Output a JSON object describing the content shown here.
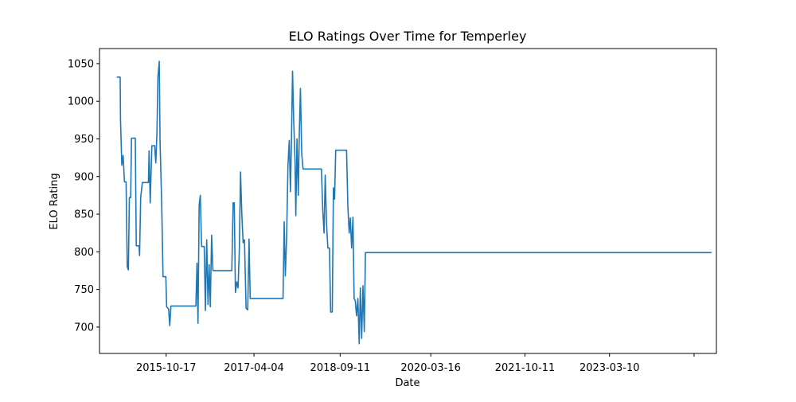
{
  "chart_data": {
    "type": "line",
    "title": "ELO Ratings Over Time for Temperley",
    "xlabel": "Date",
    "ylabel": "ELO Rating",
    "x_tick_labels": [
      "2015-10-17",
      "2017-04-04",
      "2018-09-11",
      "2020-03-16",
      "2021-10-11",
      "2023-03-10"
    ],
    "y_tick_labels": [
      "700",
      "750",
      "800",
      "850",
      "900",
      "950",
      "1000",
      "1050"
    ],
    "ylim": [
      665,
      1070
    ],
    "xlim": [
      "2014-09-06",
      "2024-12-20"
    ],
    "grid": false,
    "line_color": "#1f77b4",
    "series": [
      {
        "points": [
          [
            "2014-12-20",
            1032
          ],
          [
            "2015-01-10",
            1032
          ],
          [
            "2015-01-12",
            975
          ],
          [
            "2015-01-20",
            915
          ],
          [
            "2015-01-28",
            928
          ],
          [
            "2015-02-05",
            893
          ],
          [
            "2015-02-15",
            893
          ],
          [
            "2015-02-22",
            780
          ],
          [
            "2015-03-01",
            776
          ],
          [
            "2015-03-07",
            872
          ],
          [
            "2015-03-15",
            872
          ],
          [
            "2015-03-20",
            951
          ],
          [
            "2015-04-12",
            951
          ],
          [
            "2015-04-18",
            808
          ],
          [
            "2015-05-05",
            808
          ],
          [
            "2015-05-08",
            795
          ],
          [
            "2015-05-15",
            872
          ],
          [
            "2015-05-25",
            892
          ],
          [
            "2015-07-01",
            892
          ],
          [
            "2015-07-05",
            934
          ],
          [
            "2015-07-12",
            865
          ],
          [
            "2015-07-22",
            941
          ],
          [
            "2015-08-08",
            941
          ],
          [
            "2015-08-15",
            918
          ],
          [
            "2015-08-22",
            958
          ],
          [
            "2015-08-28",
            1032
          ],
          [
            "2015-09-05",
            1053
          ],
          [
            "2015-09-10",
            945
          ],
          [
            "2015-09-20",
            863
          ],
          [
            "2015-09-28",
            767
          ],
          [
            "2015-10-15",
            767
          ],
          [
            "2015-10-20",
            727
          ],
          [
            "2015-11-01",
            724
          ],
          [
            "2015-11-08",
            702
          ],
          [
            "2015-11-15",
            728
          ],
          [
            "2016-04-15",
            728
          ],
          [
            "2016-04-22",
            785
          ],
          [
            "2016-04-28",
            705
          ],
          [
            "2016-05-05",
            862
          ],
          [
            "2016-05-12",
            875
          ],
          [
            "2016-05-20",
            807
          ],
          [
            "2016-06-05",
            807
          ],
          [
            "2016-06-12",
            722
          ],
          [
            "2016-06-20",
            816
          ],
          [
            "2016-06-28",
            730
          ],
          [
            "2016-07-05",
            783
          ],
          [
            "2016-07-12",
            727
          ],
          [
            "2016-07-20",
            822
          ],
          [
            "2016-07-28",
            775
          ],
          [
            "2016-11-20",
            775
          ],
          [
            "2016-11-28",
            865
          ],
          [
            "2016-12-05",
            865
          ],
          [
            "2016-12-12",
            746
          ],
          [
            "2016-12-20",
            760
          ],
          [
            "2016-12-28",
            752
          ],
          [
            "2017-01-05",
            804
          ],
          [
            "2017-01-12",
            906
          ],
          [
            "2017-01-20",
            850
          ],
          [
            "2017-01-28",
            812
          ],
          [
            "2017-02-05",
            816
          ],
          [
            "2017-02-15",
            725
          ],
          [
            "2017-02-25",
            723
          ],
          [
            "2017-03-05",
            817
          ],
          [
            "2017-03-12",
            738
          ],
          [
            "2017-03-20",
            738
          ],
          [
            "2017-09-28",
            738
          ],
          [
            "2017-10-05",
            840
          ],
          [
            "2017-10-12",
            768
          ],
          [
            "2017-10-20",
            820
          ],
          [
            "2017-10-28",
            915
          ],
          [
            "2017-11-05",
            948
          ],
          [
            "2017-11-12",
            880
          ],
          [
            "2017-11-18",
            944
          ],
          [
            "2017-11-25",
            1040
          ],
          [
            "2017-12-02",
            975
          ],
          [
            "2017-12-10",
            920
          ],
          [
            "2017-12-15",
            848
          ],
          [
            "2017-12-22",
            950
          ],
          [
            "2017-12-30",
            875
          ],
          [
            "2018-01-05",
            955
          ],
          [
            "2018-01-12",
            1017
          ],
          [
            "2018-01-20",
            930
          ],
          [
            "2018-01-28",
            910
          ],
          [
            "2018-05-20",
            910
          ],
          [
            "2018-05-28",
            855
          ],
          [
            "2018-06-05",
            825
          ],
          [
            "2018-06-12",
            902
          ],
          [
            "2018-06-20",
            838
          ],
          [
            "2018-06-28",
            805
          ],
          [
            "2018-07-08",
            805
          ],
          [
            "2018-07-15",
            720
          ],
          [
            "2018-07-25",
            720
          ],
          [
            "2018-08-01",
            885
          ],
          [
            "2018-08-08",
            870
          ],
          [
            "2018-08-15",
            935
          ],
          [
            "2018-08-25",
            935
          ],
          [
            "2018-10-20",
            935
          ],
          [
            "2018-10-28",
            860
          ],
          [
            "2018-11-05",
            825
          ],
          [
            "2018-11-12",
            845
          ],
          [
            "2018-11-20",
            805
          ],
          [
            "2018-11-28",
            846
          ],
          [
            "2018-12-05",
            738
          ],
          [
            "2018-12-12",
            735
          ],
          [
            "2018-12-20",
            715
          ],
          [
            "2018-12-28",
            738
          ],
          [
            "2019-01-05",
            678
          ],
          [
            "2019-01-12",
            752
          ],
          [
            "2019-01-20",
            685
          ],
          [
            "2019-01-28",
            755
          ],
          [
            "2019-02-05",
            694
          ],
          [
            "2019-02-12",
            799
          ],
          [
            "2024-11-20",
            799
          ]
        ]
      }
    ]
  }
}
